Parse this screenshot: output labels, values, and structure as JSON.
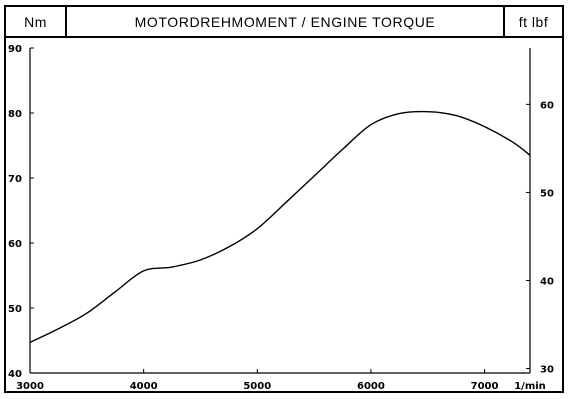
{
  "header": {
    "unit_left": "Nm",
    "title": "MOTORDREHMOMENT / ENGINE TORQUE",
    "unit_right": "ft lbf"
  },
  "chart_data": {
    "type": "line",
    "title": "MOTORDREHMOMENT / ENGINE TORQUE",
    "xlabel": "1/min",
    "ylabel": "Nm",
    "ylabel_right": "ft lbf",
    "xlim": [
      3000,
      7400
    ],
    "ylim": [
      40,
      90
    ],
    "ylim_right": [
      29.5,
      66.4
    ],
    "x_ticks": [
      3000,
      4000,
      5000,
      6000,
      7000
    ],
    "x_tick_labels": [
      "3000",
      "4000",
      "5000",
      "6000",
      "7000"
    ],
    "y_ticks": [
      40,
      50,
      60,
      70,
      80,
      90
    ],
    "y_tick_labels": [
      "40",
      "50",
      "60",
      "70",
      "80",
      "90"
    ],
    "y_right_ticks": [
      30,
      40,
      50,
      60
    ],
    "y_right_tick_labels": [
      "30",
      "40",
      "50",
      "60"
    ],
    "grid": false,
    "series": [
      {
        "x": [
          3000,
          3250,
          3500,
          3750,
          4000,
          4250,
          4500,
          4750,
          5000,
          5250,
          5500,
          5750,
          6000,
          6250,
          6500,
          6750,
          7000,
          7250,
          7400
        ],
        "values": [
          44.7,
          46.8,
          49.2,
          52.5,
          55.7,
          56.3,
          57.4,
          59.4,
          62.2,
          66.2,
          70.3,
          74.4,
          78.2,
          79.9,
          80.2,
          79.6,
          77.9,
          75.5,
          73.5
        ]
      }
    ]
  }
}
